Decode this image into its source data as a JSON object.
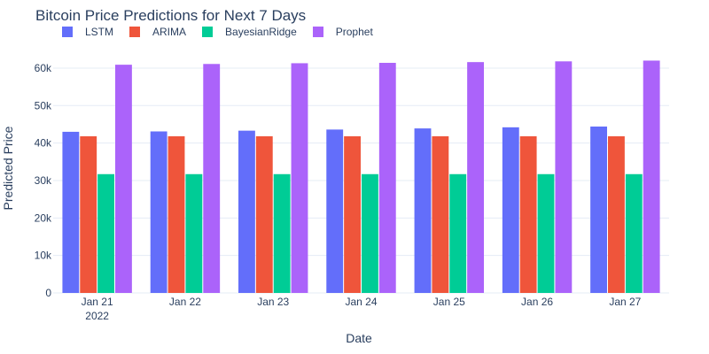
{
  "chart_data": {
    "type": "bar",
    "title": "Bitcoin Price Predictions for Next 7 Days",
    "xlabel": "Date",
    "ylabel": "Predicted Price",
    "categories": [
      "Jan 21",
      "Jan 22",
      "Jan 23",
      "Jan 24",
      "Jan 25",
      "Jan 26",
      "Jan 27"
    ],
    "x_year_label": "2022",
    "ylim": [
      0,
      64000
    ],
    "y_ticks": [
      0,
      10000,
      20000,
      30000,
      40000,
      50000,
      60000
    ],
    "y_tick_labels": [
      "0",
      "10k",
      "20k",
      "30k",
      "40k",
      "50k",
      "60k"
    ],
    "grid": true,
    "legend_position": "top-left, horizontal",
    "series": [
      {
        "name": "LSTM",
        "color": "#636efa",
        "values": [
          43000,
          43100,
          43300,
          43600,
          43900,
          44200,
          44400
        ]
      },
      {
        "name": "ARIMA",
        "color": "#ef553b",
        "values": [
          41800,
          41800,
          41800,
          41800,
          41800,
          41800,
          41800
        ]
      },
      {
        "name": "BayesianRidge",
        "color": "#00cc96",
        "values": [
          31700,
          31700,
          31700,
          31700,
          31700,
          31700,
          31700
        ]
      },
      {
        "name": "Prophet",
        "color": "#ab63fa",
        "values": [
          60900,
          61100,
          61300,
          61400,
          61600,
          61800,
          62000
        ]
      }
    ]
  }
}
